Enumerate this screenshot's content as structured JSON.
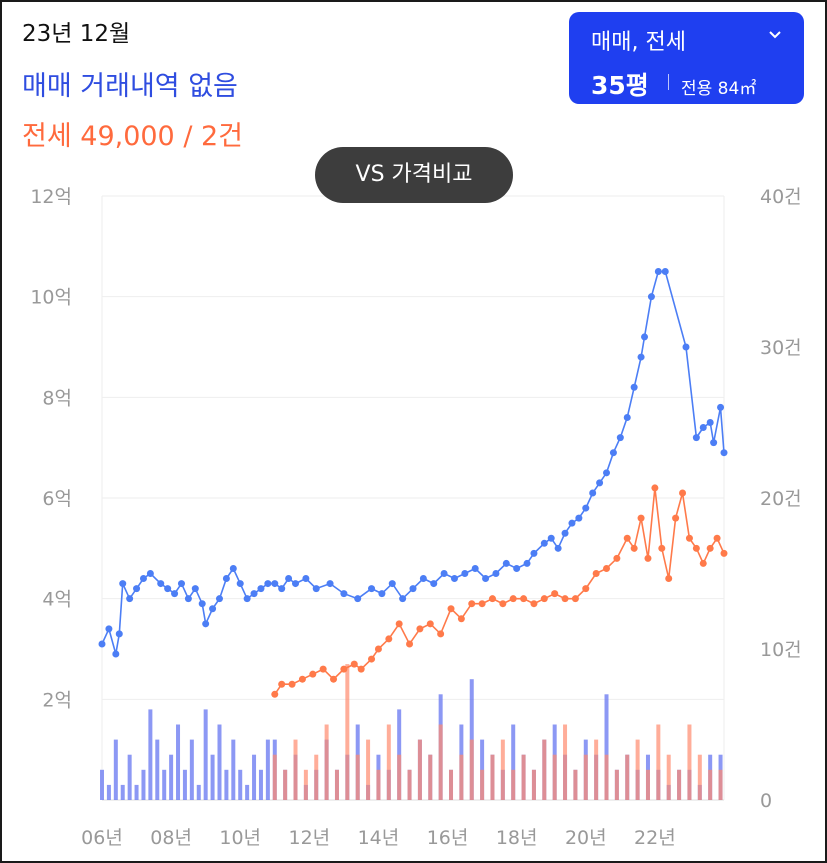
{
  "header": {
    "date_label": "23년 12월",
    "sale_status": "매매 거래내역 없음",
    "rent_status": "전세 49,000 / 2건"
  },
  "filter": {
    "type_label": "매매, 전세",
    "size_label": "35평",
    "area_label": "전용 84㎡"
  },
  "compare_button": {
    "label": "VS 가격비교"
  },
  "colors": {
    "sale": "#4c7ef5",
    "rent": "#ff7a4a",
    "sale_bar": "#5b6cf0",
    "rent_bar": "#ff8a6e"
  },
  "chart_data": {
    "type": "line",
    "x_range": [
      2006.0,
      2024.0
    ],
    "x_tick_labels": [
      "06년",
      "08년",
      "10년",
      "12년",
      "14년",
      "16년",
      "18년",
      "20년",
      "22년"
    ],
    "x_tick_values": [
      2006,
      2008,
      2010,
      2012,
      2014,
      2016,
      2018,
      2020,
      2022
    ],
    "y_left": {
      "range": [
        0,
        12
      ],
      "unit": "억",
      "tick_labels": [
        "2억",
        "4억",
        "6억",
        "8억",
        "10억",
        "12억"
      ]
    },
    "y_right": {
      "range": [
        0,
        40
      ],
      "unit": "건",
      "tick_labels": [
        "0",
        "10건",
        "20건",
        "30건",
        "40건"
      ]
    },
    "series": [
      {
        "kind": "sale_price",
        "x": [
          2006.0,
          2006.2,
          2006.4,
          2006.5,
          2006.6,
          2006.8,
          2007.0,
          2007.2,
          2007.4,
          2007.7,
          2007.9,
          2008.1,
          2008.3,
          2008.5,
          2008.7,
          2008.9,
          2009.0,
          2009.2,
          2009.4,
          2009.6,
          2009.8,
          2010.0,
          2010.2,
          2010.4,
          2010.6,
          2010.8,
          2011.0,
          2011.2,
          2011.4,
          2011.6,
          2011.9,
          2012.2,
          2012.6,
          2013.0,
          2013.4,
          2013.8,
          2014.1,
          2014.4,
          2014.7,
          2015.0,
          2015.3,
          2015.6,
          2015.9,
          2016.2,
          2016.5,
          2016.8,
          2017.1,
          2017.4,
          2017.7,
          2018.0,
          2018.3,
          2018.5,
          2018.8,
          2019.0,
          2019.2,
          2019.4,
          2019.6,
          2019.8,
          2020.0,
          2020.2,
          2020.4,
          2020.6,
          2020.8,
          2021.0,
          2021.2,
          2021.4,
          2021.6,
          2021.7,
          2021.9,
          2022.1,
          2022.3,
          2022.9,
          2023.2,
          2023.4,
          2023.6,
          2023.7,
          2023.9,
          2024.0
        ],
        "values": [
          3.1,
          3.4,
          2.9,
          3.3,
          4.3,
          4.0,
          4.2,
          4.4,
          4.5,
          4.3,
          4.2,
          4.1,
          4.3,
          4.0,
          4.2,
          3.9,
          3.5,
          3.8,
          4.0,
          4.4,
          4.6,
          4.3,
          4.0,
          4.1,
          4.2,
          4.3,
          4.3,
          4.2,
          4.4,
          4.3,
          4.4,
          4.2,
          4.3,
          4.1,
          4.0,
          4.2,
          4.1,
          4.3,
          4.0,
          4.2,
          4.4,
          4.3,
          4.5,
          4.4,
          4.5,
          4.6,
          4.4,
          4.5,
          4.7,
          4.6,
          4.7,
          4.9,
          5.1,
          5.2,
          5.0,
          5.3,
          5.5,
          5.6,
          5.8,
          6.1,
          6.3,
          6.5,
          6.9,
          7.2,
          7.6,
          8.2,
          8.8,
          9.2,
          10.0,
          10.5,
          10.5,
          9.0,
          7.2,
          7.4,
          7.5,
          7.1,
          7.8,
          6.9
        ],
        "color": "#4c7ef5"
      },
      {
        "kind": "rent_price",
        "x": [
          2011.0,
          2011.2,
          2011.5,
          2011.8,
          2012.1,
          2012.4,
          2012.7,
          2013.0,
          2013.3,
          2013.5,
          2013.8,
          2014.0,
          2014.3,
          2014.6,
          2014.9,
          2015.2,
          2015.5,
          2015.8,
          2016.1,
          2016.4,
          2016.7,
          2017.0,
          2017.3,
          2017.6,
          2017.9,
          2018.2,
          2018.5,
          2018.8,
          2019.1,
          2019.4,
          2019.7,
          2020.0,
          2020.3,
          2020.6,
          2020.9,
          2021.2,
          2021.4,
          2021.6,
          2021.8,
          2022.0,
          2022.2,
          2022.4,
          2022.6,
          2022.8,
          2023.0,
          2023.2,
          2023.4,
          2023.6,
          2023.8,
          2024.0
        ],
        "values": [
          2.1,
          2.3,
          2.3,
          2.4,
          2.5,
          2.6,
          2.4,
          2.6,
          2.7,
          2.6,
          2.8,
          3.0,
          3.2,
          3.5,
          3.1,
          3.4,
          3.5,
          3.3,
          3.8,
          3.6,
          3.9,
          3.9,
          4.0,
          3.9,
          4.0,
          4.0,
          3.9,
          4.0,
          4.1,
          4.0,
          4.0,
          4.2,
          4.5,
          4.6,
          4.8,
          5.2,
          5.0,
          5.6,
          4.8,
          6.2,
          5.0,
          4.4,
          5.6,
          6.1,
          5.2,
          5.0,
          4.7,
          5.0,
          5.2,
          4.9
        ],
        "color": "#ff7a4a"
      },
      {
        "kind": "sale_count",
        "x": [
          2006.0,
          2006.2,
          2006.4,
          2006.6,
          2006.8,
          2007.0,
          2007.2,
          2007.4,
          2007.6,
          2007.8,
          2008.0,
          2008.2,
          2008.4,
          2008.6,
          2008.8,
          2009.0,
          2009.2,
          2009.4,
          2009.6,
          2009.8,
          2010.0,
          2010.2,
          2010.4,
          2010.6,
          2010.8,
          2011.0,
          2011.3,
          2011.6,
          2011.9,
          2012.2,
          2012.5,
          2012.8,
          2013.1,
          2013.4,
          2013.7,
          2014.0,
          2014.3,
          2014.6,
          2014.9,
          2015.2,
          2015.5,
          2015.8,
          2016.1,
          2016.4,
          2016.7,
          2017.0,
          2017.3,
          2017.6,
          2017.9,
          2018.2,
          2018.5,
          2018.8,
          2019.1,
          2019.4,
          2019.7,
          2020.0,
          2020.3,
          2020.6,
          2020.9,
          2021.2,
          2021.5,
          2021.8,
          2022.1,
          2022.4,
          2022.7,
          2023.0,
          2023.3,
          2023.6,
          2023.9
        ],
        "values": [
          2,
          1,
          4,
          1,
          3,
          1,
          2,
          6,
          4,
          2,
          3,
          5,
          2,
          4,
          1,
          6,
          3,
          5,
          2,
          4,
          2,
          1,
          3,
          2,
          4,
          4,
          2,
          3,
          1,
          2,
          4,
          2,
          3,
          5,
          1,
          3,
          2,
          6,
          2,
          4,
          3,
          7,
          2,
          5,
          8,
          4,
          3,
          2,
          5,
          3,
          2,
          4,
          5,
          3,
          2,
          4,
          3,
          7,
          2,
          3,
          2,
          3,
          2,
          1,
          2,
          2,
          1,
          3,
          3
        ],
        "color": "#5b6cf0"
      },
      {
        "kind": "rent_count",
        "x": [
          2011.0,
          2011.3,
          2011.6,
          2011.9,
          2012.2,
          2012.5,
          2012.8,
          2013.1,
          2013.4,
          2013.7,
          2014.0,
          2014.3,
          2014.6,
          2014.9,
          2015.2,
          2015.5,
          2015.8,
          2016.1,
          2016.4,
          2016.7,
          2017.0,
          2017.3,
          2017.6,
          2017.9,
          2018.2,
          2018.5,
          2018.8,
          2019.1,
          2019.4,
          2019.7,
          2020.0,
          2020.3,
          2020.6,
          2020.9,
          2021.2,
          2021.5,
          2021.8,
          2022.1,
          2022.4,
          2022.7,
          2023.0,
          2023.3,
          2023.6,
          2023.9
        ],
        "values": [
          3,
          2,
          4,
          2,
          3,
          5,
          2,
          9,
          3,
          4,
          2,
          5,
          3,
          2,
          4,
          3,
          5,
          2,
          3,
          4,
          2,
          3,
          4,
          2,
          3,
          2,
          4,
          3,
          5,
          2,
          3,
          4,
          3,
          2,
          3,
          4,
          2,
          5,
          3,
          2,
          5,
          3,
          2,
          2
        ],
        "color": "#ff8a6e"
      }
    ],
    "grid": true
  }
}
